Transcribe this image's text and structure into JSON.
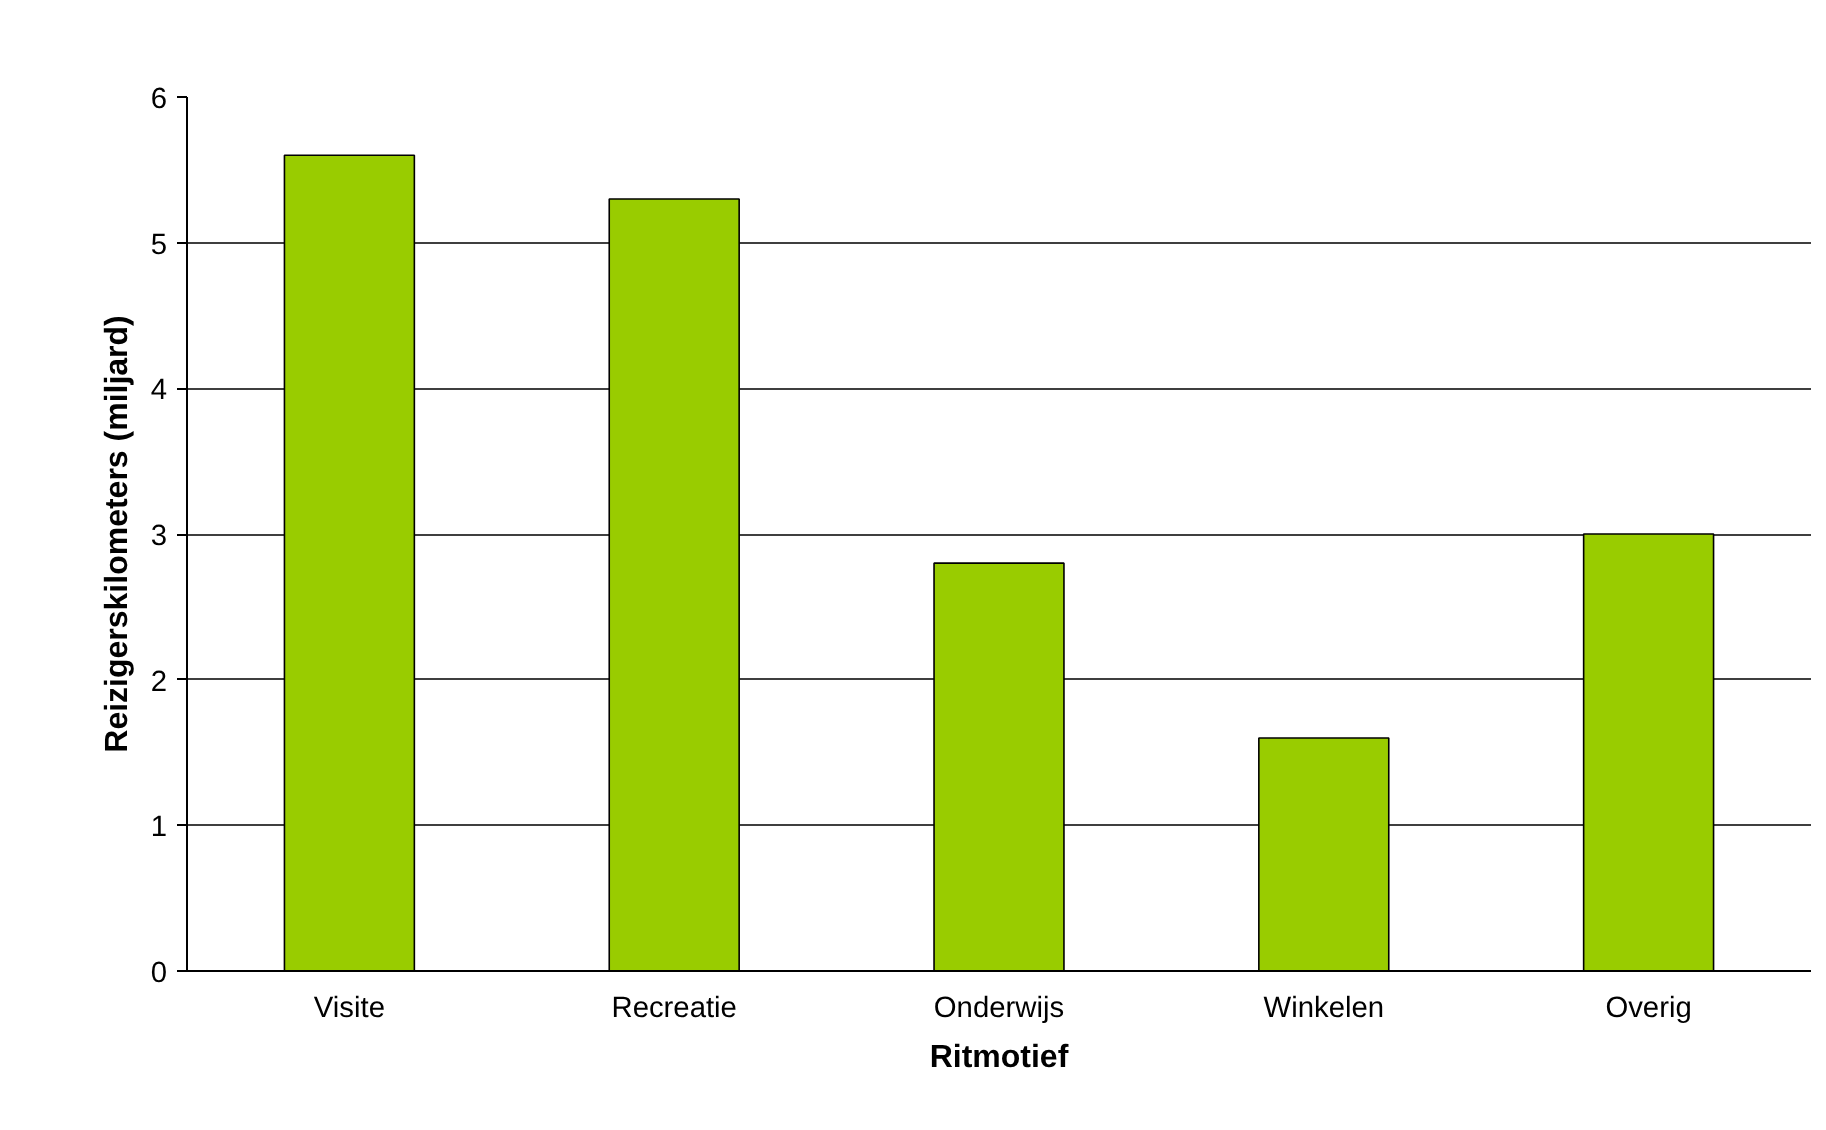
{
  "chart_data": {
    "type": "bar",
    "xlabel": "Ritmotief",
    "ylabel": "Reizigerskilometers (miljard)",
    "categories": [
      "Visite",
      "Recreatie",
      "Onderwijs",
      "Winkelen",
      "Overig"
    ],
    "values": [
      5.6,
      5.3,
      2.8,
      1.6,
      3.0
    ],
    "color": "#99cc00",
    "ylim": [
      0,
      6
    ],
    "yticks": [
      0,
      1,
      2,
      3,
      4,
      5,
      6
    ],
    "grid": "y"
  }
}
